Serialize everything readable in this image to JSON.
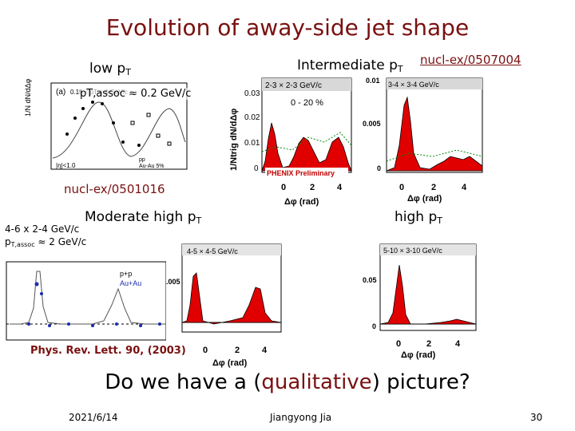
{
  "slide": {
    "title": "Evolution of away-side jet shape",
    "question_pre": "Do we have a (",
    "question_em": "qualitative",
    "question_post": ") picture?",
    "footer": {
      "date": "2021/6/14",
      "author": "Jiangyong Jia",
      "page": "30"
    },
    "accent_color": "#7a1010"
  },
  "labels": {
    "low_pt": "low p",
    "low_pt_sub": "T",
    "intermediate_pt": "Intermediate p",
    "intermediate_pt_sub": "T",
    "ref_intermediate": "nucl-ex/0507004",
    "ref_low": "nucl-ex/0501016",
    "moderate_pt": "Moderate high p",
    "moderate_pt_sub": "T",
    "high_pt": "high p",
    "high_pt_sub": "T",
    "moderate_bins": "4-6 x 2-4 GeV/c",
    "moderate_assoc": "p",
    "moderate_assoc_sub": "T,assoc",
    "moderate_assoc_val": " ≈ 2 GeV/c",
    "ref_prl": "Phys. Rev. Lett. 90, (2003)"
  },
  "panels": {
    "low": {
      "assoc_cut": "pT,assoc ≈ 0.2 GeV/c",
      "panel_tag": "(a)",
      "bin_tag": "0.15 < pT < 4 GeV/c",
      "ylabel": "1/N dN/dΔφ",
      "eta_cut": "|η|<1.0",
      "legend_pp": "pp",
      "legend_auau": "Au-Au 5%"
    },
    "intermediate1": {
      "bin": "2-3 × 2-3 GeV/c",
      "centrality": "0 - 20 %",
      "ylabel": "1/Ntrig dN/dΔφ",
      "yticks": [
        "0.03",
        "0.02",
        "0.01",
        "0"
      ],
      "xticks": [
        "0",
        "2",
        "4"
      ],
      "xlabel": "Δφ (rad)",
      "preliminary": "PHENIX Preliminary"
    },
    "intermediate2": {
      "bin": "3-4 × 3-4 GeV/c",
      "yticks": [
        "0.01",
        "0.005",
        "0"
      ],
      "xticks": [
        "0",
        "2",
        "4"
      ],
      "xlabel": "Δφ (rad)"
    },
    "moderate": {
      "legend_pp": "p+p",
      "legend_auau": "Au+Au"
    },
    "high1": {
      "bin": "4-5 × 4-5 GeV/c",
      "ytick": ".005",
      "xticks": [
        "0",
        "2",
        "4"
      ],
      "xlabel": "Δφ (rad)"
    },
    "high2": {
      "bin": "5-10 × 3-10 GeV/c",
      "yticks": [
        "0.05",
        "0"
      ],
      "xticks": [
        "0",
        "2",
        "4"
      ],
      "xlabel": "Δφ (rad)"
    }
  }
}
